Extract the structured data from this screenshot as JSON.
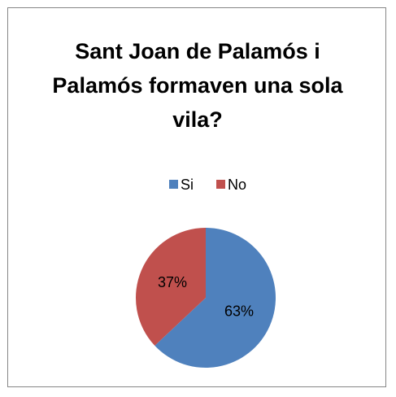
{
  "chart_data": {
    "type": "pie",
    "title": "Sant Joan de Palamós i Palamós formaven una sola vila?",
    "categories": [
      "Si",
      "No"
    ],
    "values": [
      63,
      37
    ],
    "value_labels": [
      "63%",
      "37%"
    ],
    "colors": [
      "#4f81bd",
      "#c0504d"
    ],
    "legend": "top"
  }
}
